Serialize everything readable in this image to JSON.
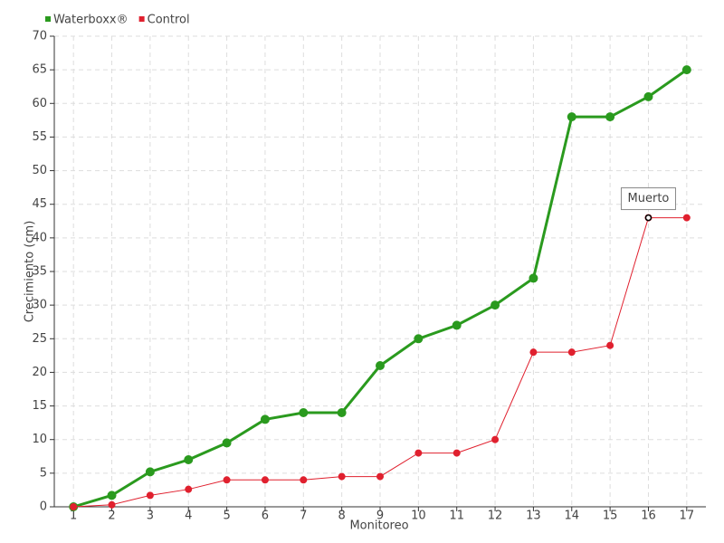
{
  "chart_data": {
    "type": "line",
    "x_label": "Monitoreo",
    "y_label": "Crecimiento (cm)",
    "categories": [
      "1",
      "2",
      "3",
      "4",
      "5",
      "6",
      "7",
      "8",
      "9",
      "10",
      "11",
      "12",
      "13",
      "14",
      "15",
      "16",
      "17"
    ],
    "series": [
      {
        "name": "Waterboxx®",
        "color": "#2a9a1e",
        "values": [
          0,
          1.7,
          5.2,
          7,
          9.5,
          13,
          14,
          14,
          21,
          25,
          27,
          30,
          34,
          58,
          58,
          61,
          65
        ]
      },
      {
        "name": "Control",
        "color": "#e0202e",
        "values": [
          0,
          0.3,
          1.7,
          2.6,
          4,
          4,
          4,
          4.5,
          4.5,
          8,
          8,
          10,
          23,
          23,
          24,
          43,
          43
        ]
      }
    ],
    "ylim": [
      0,
      70
    ],
    "yticks": [
      0,
      5,
      10,
      15,
      20,
      25,
      30,
      35,
      40,
      45,
      50,
      55,
      60,
      65,
      70
    ],
    "grid": true,
    "legend": "top-left",
    "annotations": [
      {
        "text": "Muerto",
        "x": "16",
        "series": "Control"
      }
    ]
  }
}
